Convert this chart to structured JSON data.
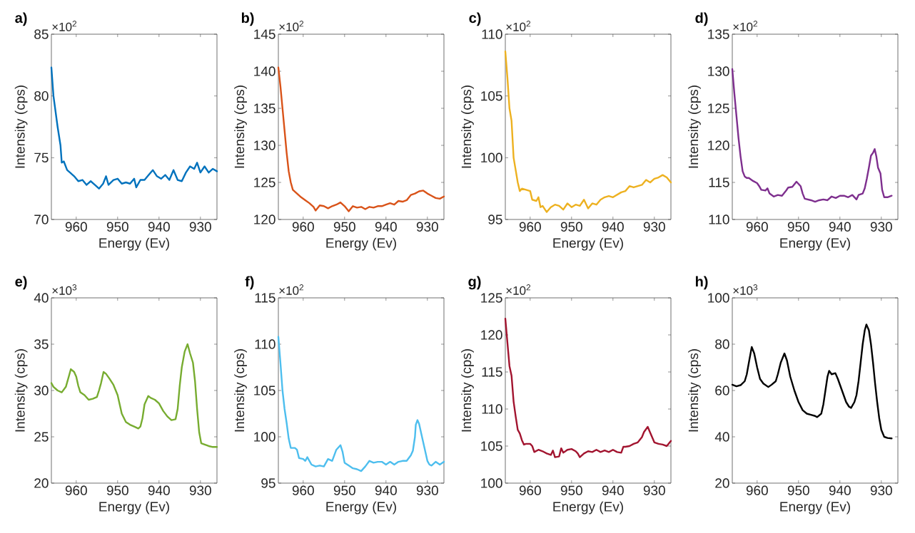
{
  "chart_data": [
    {
      "type": "line",
      "title": "a)",
      "xlabel": "Energy (Ev)",
      "ylabel": "Intensity (cps)",
      "annotations": [
        "×10$^{2}$"
      ],
      "xlim": [
        966,
        926
      ],
      "xticks": [
        960,
        950,
        940,
        930
      ],
      "ylim": [
        70,
        85
      ],
      "yticks": [
        70,
        75,
        80,
        85
      ],
      "series": [
        {
          "color": "#0072bd",
          "x": [
            966,
            965.5,
            964.5,
            963.8,
            963.5,
            963,
            962.2,
            961.5,
            960.5,
            959.5,
            958.5,
            957.5,
            956.5,
            955.5,
            954.5,
            953.5,
            952.8,
            952.2,
            951,
            950,
            949,
            948,
            947,
            946,
            945.5,
            944.5,
            943.5,
            942.5,
            941.5,
            940.5,
            939.5,
            938.5,
            937.5,
            936.5,
            935.5,
            934.5,
            933.5,
            932.5,
            931.5,
            930.8,
            930,
            929,
            928,
            927,
            926
          ],
          "values": [
            82.3,
            80,
            77.5,
            76,
            74.6,
            74.7,
            74,
            73.8,
            73.5,
            73.1,
            73.2,
            72.8,
            73.1,
            72.8,
            72.5,
            72.9,
            73.5,
            72.8,
            73.2,
            73.3,
            72.9,
            73.0,
            72.9,
            73.3,
            72.6,
            73.2,
            73.2,
            73.6,
            74.0,
            73.5,
            73.3,
            73.6,
            73.2,
            74.0,
            73.2,
            73.1,
            73.8,
            74.3,
            74.1,
            74.6,
            73.8,
            74.3,
            73.8,
            74.1,
            73.9
          ]
        }
      ]
    },
    {
      "type": "line",
      "title": "b)",
      "xlabel": "Energy (Ev)",
      "ylabel": "Intensity (cps)",
      "annotations": [
        "×10$^{2}$"
      ],
      "xlim": [
        966,
        926
      ],
      "xticks": [
        960,
        950,
        940,
        930
      ],
      "ylim": [
        120,
        145
      ],
      "yticks": [
        120,
        125,
        130,
        135,
        140,
        145
      ],
      "series": [
        {
          "color": "#d95319",
          "x": [
            966,
            965.5,
            965,
            964.5,
            964,
            963.5,
            963,
            962.5,
            961.5,
            960.5,
            959.5,
            958.5,
            957.5,
            957,
            956,
            955,
            954,
            953,
            952,
            951,
            950,
            949,
            948,
            947,
            946,
            945,
            944,
            943,
            942,
            941,
            940,
            939,
            938,
            937,
            936,
            935,
            934,
            933,
            932,
            931,
            930,
            929,
            928,
            927,
            926
          ],
          "values": [
            140.5,
            138,
            135,
            132,
            129,
            126.5,
            125,
            124,
            123.5,
            123,
            122.6,
            122.2,
            121.7,
            121.2,
            121.9,
            121.8,
            121.5,
            121.8,
            122.0,
            122.3,
            121.8,
            121.1,
            121.8,
            121.6,
            121.7,
            121.4,
            121.7,
            121.6,
            121.8,
            121.8,
            122.0,
            122.2,
            122.0,
            122.5,
            122.4,
            122.6,
            123.3,
            123.5,
            123.8,
            123.9,
            123.5,
            123.2,
            122.9,
            122.8,
            123.1
          ]
        }
      ]
    },
    {
      "type": "line",
      "title": "c)",
      "xlabel": "Energy (Ev)",
      "ylabel": "Intensity (cps)",
      "annotations": [
        "×10$^{2}$"
      ],
      "xlim": [
        966,
        926
      ],
      "xticks": [
        960,
        950,
        940,
        930
      ],
      "ylim": [
        95,
        110
      ],
      "yticks": [
        95,
        100,
        105,
        110
      ],
      "series": [
        {
          "color": "#edb120",
          "x": [
            966,
            965.5,
            965,
            964.5,
            964,
            963.5,
            963,
            962.5,
            962,
            961,
            960,
            959.5,
            958.5,
            958,
            957.5,
            957,
            956,
            955,
            954,
            953,
            952,
            951,
            950,
            949,
            948,
            947,
            946,
            945,
            944,
            943,
            942,
            941,
            940,
            939,
            938,
            937,
            936,
            935,
            934,
            933,
            932,
            931,
            930,
            929,
            928,
            927,
            926
          ],
          "values": [
            108.6,
            106.5,
            104,
            103,
            100,
            99,
            98,
            97.3,
            97.5,
            97.4,
            97.3,
            96.6,
            96.5,
            96.8,
            96.0,
            96.1,
            95.6,
            96.0,
            96.2,
            96.1,
            95.8,
            96.3,
            96.0,
            96.2,
            96.1,
            96.6,
            95.9,
            96.3,
            96.2,
            96.6,
            96.8,
            96.9,
            96.8,
            97.0,
            97.2,
            97.3,
            97.7,
            97.6,
            97.7,
            97.8,
            98.2,
            98.0,
            98.3,
            98.4,
            98.6,
            98.4,
            98.0
          ]
        }
      ]
    },
    {
      "type": "line",
      "title": "d)",
      "xlabel": "Energy (Ev)",
      "ylabel": "Intensity (cps)",
      "annotations": [
        "×10$^{2}$"
      ],
      "xlim": [
        966,
        926
      ],
      "xticks": [
        960,
        950,
        940,
        930
      ],
      "ylim": [
        110,
        135
      ],
      "yticks": [
        110,
        115,
        120,
        125,
        130,
        135
      ],
      "series": [
        {
          "color": "#7e2f8e",
          "x": [
            966,
            965.5,
            965,
            964.5,
            964,
            963.5,
            963,
            962.5,
            962,
            961,
            960,
            959.5,
            959,
            958,
            957.5,
            957,
            956,
            955,
            954,
            953,
            952.5,
            951.5,
            950.5,
            949.5,
            949,
            948.5,
            947,
            946,
            945,
            944,
            943,
            942,
            941,
            940,
            939,
            938,
            937,
            936,
            935.5,
            934.5,
            934,
            933.5,
            933,
            932.5,
            932,
            931.6,
            931.2,
            930.8,
            930.2,
            929.8,
            929.3,
            928.5,
            927.5
          ],
          "values": [
            130.3,
            127,
            124,
            121,
            118.5,
            116.5,
            115.8,
            115.6,
            115.6,
            115.2,
            114.9,
            114.5,
            114.0,
            113.9,
            114.2,
            113.5,
            113.1,
            113.3,
            113.2,
            113.9,
            114.3,
            114.4,
            115.1,
            114.5,
            113.5,
            112.8,
            112.6,
            112.4,
            112.6,
            112.7,
            112.6,
            113.1,
            112.9,
            113.2,
            113.2,
            113.0,
            113.3,
            112.7,
            113.3,
            113.5,
            114.2,
            115.5,
            117,
            118.6,
            119.0,
            119.5,
            118.5,
            117,
            116.2,
            114,
            113.0,
            113.0,
            113.2
          ]
        }
      ]
    },
    {
      "type": "line",
      "title": "e)",
      "xlabel": "Energy (Ev)",
      "ylabel": "Intensity (cps)",
      "annotations": [
        "×10$^{3}$"
      ],
      "xlim": [
        966,
        926
      ],
      "xticks": [
        960,
        950,
        940,
        930
      ],
      "ylim": [
        20,
        40
      ],
      "yticks": [
        20,
        25,
        30,
        35,
        40
      ],
      "series": [
        {
          "color": "#77ac30",
          "x": [
            966,
            965.5,
            964.5,
            963.5,
            962.5,
            961.8,
            961.3,
            960.5,
            960,
            959.5,
            959,
            958,
            957,
            956,
            955,
            954.5,
            954,
            953.4,
            952.8,
            952,
            951,
            950,
            949.5,
            949,
            948,
            947,
            946,
            945,
            944.5,
            944,
            943.5,
            942.6,
            942,
            941,
            940,
            939,
            938,
            937,
            936,
            935.5,
            935,
            934.5,
            933.8,
            933.1,
            932.5,
            931.8,
            931.3,
            930.8,
            930.3,
            929.8,
            928,
            927,
            926
          ],
          "values": [
            30.8,
            30.4,
            30.0,
            29.8,
            30.4,
            31.5,
            32.3,
            32.0,
            31.5,
            30.5,
            29.8,
            29.5,
            29.0,
            29.1,
            29.3,
            30,
            30.8,
            32.0,
            31.8,
            31.3,
            30.6,
            29.5,
            28.5,
            27.5,
            26.6,
            26.3,
            26.1,
            25.9,
            26.1,
            27,
            28.5,
            29.4,
            29.2,
            29.0,
            28.6,
            27.8,
            27.2,
            26.8,
            26.9,
            28,
            30.5,
            32.5,
            34.2,
            35.0,
            34.0,
            33.0,
            31.0,
            28,
            25.5,
            24.3,
            24.0,
            23.9,
            23.9
          ]
        }
      ]
    },
    {
      "type": "line",
      "title": "f)",
      "xlabel": "Energy (Ev)",
      "ylabel": "Intensity (cps)",
      "annotations": [
        "×10$^{2}$"
      ],
      "xlim": [
        966,
        926
      ],
      "xticks": [
        960,
        950,
        940,
        930
      ],
      "ylim": [
        95,
        115
      ],
      "yticks": [
        95,
        100,
        105,
        110,
        115
      ],
      "series": [
        {
          "color": "#4dbeee",
          "x": [
            966,
            965.5,
            965,
            964.5,
            964,
            963.5,
            963,
            962,
            961.5,
            961,
            960,
            959.5,
            959,
            958,
            957,
            956,
            955,
            954,
            953,
            952,
            951,
            950.5,
            950,
            949,
            948,
            947,
            946,
            945,
            944,
            943,
            942,
            941,
            940,
            939,
            938,
            937,
            936,
            935,
            934,
            933.5,
            933,
            932.8,
            932.4,
            932,
            931.4,
            930.8,
            930,
            929.5,
            929,
            928,
            927,
            926
          ],
          "values": [
            110.8,
            108,
            105,
            103,
            101.5,
            99.8,
            98.8,
            98.8,
            98.6,
            97.7,
            97.6,
            97.4,
            97.8,
            97.0,
            96.8,
            96.9,
            96.8,
            97.6,
            97.4,
            98.6,
            99.1,
            98.4,
            97.2,
            96.9,
            96.6,
            96.5,
            96.3,
            96.8,
            97.4,
            97.2,
            97.3,
            97.3,
            97.0,
            97.3,
            97.0,
            97.3,
            97.4,
            97.4,
            98.0,
            98.5,
            100,
            101.3,
            101.8,
            101.4,
            100.2,
            99.0,
            97.4,
            97.0,
            96.9,
            97.3,
            97.0,
            97.3
          ]
        }
      ]
    },
    {
      "type": "line",
      "title": "g)",
      "xlabel": "Energy (Ev)",
      "ylabel": "Intensity (cps)",
      "annotations": [
        "×10$^{2}$"
      ],
      "xlim": [
        966,
        926
      ],
      "xticks": [
        960,
        950,
        940,
        930
      ],
      "ylim": [
        100,
        125
      ],
      "yticks": [
        100,
        105,
        110,
        115,
        120,
        125
      ],
      "series": [
        {
          "color": "#a2142f",
          "x": [
            966,
            965.5,
            965,
            964.5,
            964,
            963.5,
            963,
            962.5,
            962,
            961.5,
            961,
            960,
            959.5,
            959,
            958,
            957,
            956,
            955,
            954.5,
            954,
            953,
            952.5,
            952,
            951,
            950,
            949,
            948.5,
            948,
            947,
            946,
            945,
            944,
            943,
            942,
            941,
            940,
            939,
            938,
            937.5,
            937,
            936,
            935,
            934,
            933,
            932.5,
            931.6,
            931,
            930,
            929,
            928,
            927,
            926
          ],
          "values": [
            122.2,
            119,
            115.8,
            114.5,
            111,
            109,
            107.2,
            106.7,
            105.8,
            105.2,
            105.3,
            105.3,
            105.0,
            104.2,
            104.5,
            104.3,
            104.0,
            103.8,
            104.4,
            103.5,
            103.6,
            104.7,
            104.1,
            104.5,
            104.6,
            104.3,
            104.0,
            103.5,
            104.0,
            104.3,
            104.2,
            104.5,
            104.2,
            104.4,
            104.2,
            104.5,
            104.2,
            104.1,
            104.9,
            104.9,
            105.0,
            105.3,
            105.5,
            106.2,
            106.9,
            107.6,
            106.8,
            105.5,
            105.3,
            105.2,
            105.0,
            105.7
          ]
        }
      ]
    },
    {
      "type": "line",
      "title": "h)",
      "xlabel": "Energy (Ev)",
      "ylabel": "Intensity (cps)",
      "annotations": [
        "×10$^{3}$"
      ],
      "xlim": [
        966,
        926
      ],
      "xticks": [
        960,
        950,
        940,
        930
      ],
      "ylim": [
        20,
        100
      ],
      "yticks": [
        20,
        40,
        60,
        80,
        100
      ],
      "series": [
        {
          "color": "#000000",
          "x": [
            966,
            965,
            964,
            963,
            962.5,
            962,
            961.3,
            960.7,
            960,
            959.3,
            958.5,
            957.3,
            956.5,
            955.5,
            955,
            954.3,
            953.4,
            952.8,
            952,
            951,
            950,
            949,
            948,
            947,
            946,
            945.5,
            944.5,
            944,
            943.5,
            943,
            942.6,
            942,
            941.1,
            940.5,
            939.5,
            938.5,
            937.8,
            937.3,
            936.5,
            936,
            935.5,
            935,
            934.5,
            934,
            933.6,
            933,
            932.5,
            932,
            931.5,
            931,
            930.5,
            930,
            929.3,
            928.5,
            927.5
          ],
          "values": [
            62.5,
            61.8,
            62.3,
            64,
            67,
            72,
            78.8,
            76,
            70,
            65,
            63,
            61.5,
            62.5,
            64,
            67,
            72,
            76,
            73,
            66,
            60,
            55,
            51.5,
            50,
            49.5,
            49,
            48.5,
            50,
            54,
            60,
            66,
            68.5,
            67,
            67.5,
            65,
            60,
            55,
            53,
            52.5,
            55,
            58,
            64,
            72,
            80,
            86,
            88.5,
            86,
            80,
            72,
            63,
            55,
            48,
            43,
            40,
            39.5,
            39.3
          ]
        }
      ]
    }
  ]
}
